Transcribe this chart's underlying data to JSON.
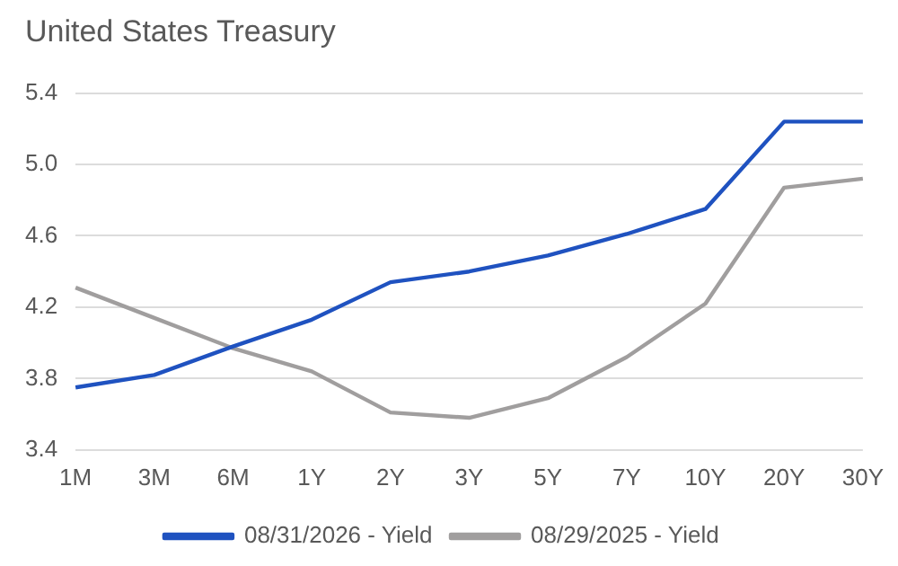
{
  "chart_data": {
    "type": "line",
    "title": "United States Treasury",
    "categories": [
      "1M",
      "3M",
      "6M",
      "1Y",
      "2Y",
      "3Y",
      "5Y",
      "7Y",
      "10Y",
      "20Y",
      "30Y"
    ],
    "series": [
      {
        "name": "08/31/2026 - Yield",
        "color": "#1f52c0",
        "values": [
          3.75,
          3.82,
          3.98,
          4.13,
          4.34,
          4.4,
          4.49,
          4.61,
          4.75,
          5.24,
          5.24
        ]
      },
      {
        "name": "08/29/2025 - Yield",
        "color": "#a09e9e",
        "values": [
          4.31,
          4.14,
          3.97,
          3.84,
          3.61,
          3.58,
          3.69,
          3.92,
          4.22,
          4.87,
          4.92
        ]
      }
    ],
    "ylim": [
      3.4,
      5.4
    ],
    "yticks": [
      {
        "value": 3.4,
        "label": "3.4"
      },
      {
        "value": 3.8,
        "label": "3.8"
      },
      {
        "value": 4.2,
        "label": "4.2"
      },
      {
        "value": 4.6,
        "label": "4.6"
      },
      {
        "value": 5.0,
        "label": "5.0"
      },
      {
        "value": 5.4,
        "label": "5.4"
      }
    ],
    "grid": "y",
    "legend": "bottom",
    "marker": "none",
    "line_style": "solid"
  }
}
